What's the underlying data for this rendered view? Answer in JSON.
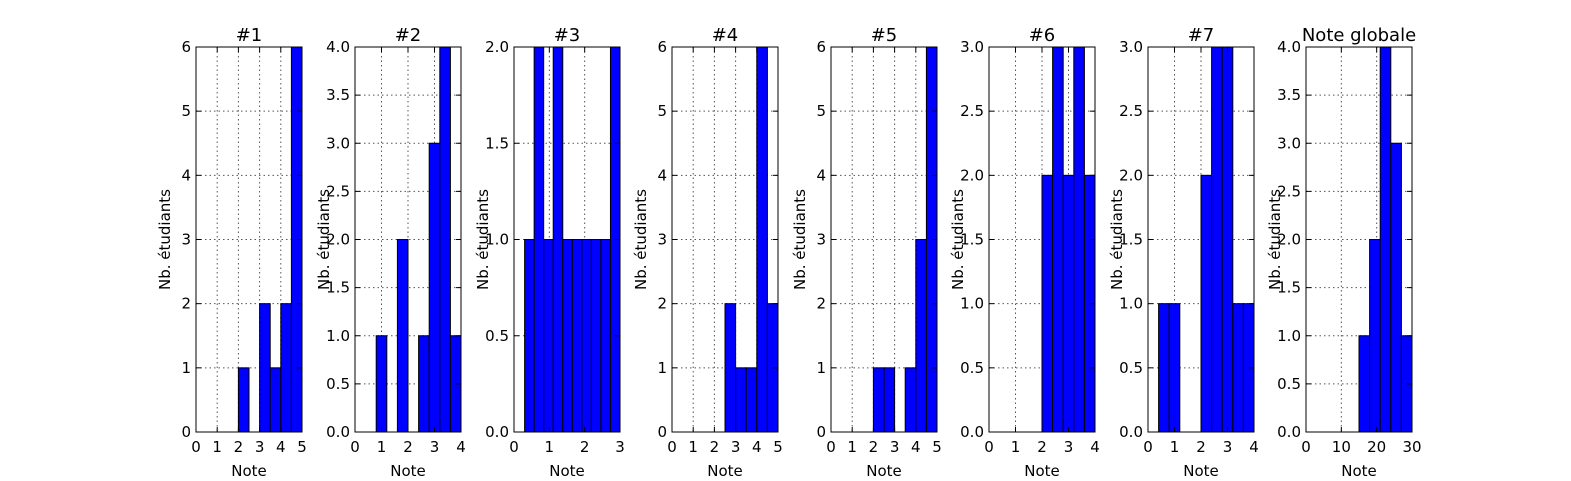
{
  "chart_data": [
    {
      "type": "bar",
      "title": "#1",
      "xlabel": "Note",
      "ylabel": "Nb. étudiants",
      "xlim": [
        0,
        5
      ],
      "ylim": [
        0,
        6
      ],
      "xticks": [
        0,
        1,
        2,
        3,
        4,
        5
      ],
      "yticks": [
        0,
        1,
        2,
        3,
        4,
        5,
        6
      ],
      "bin_edges": [
        0,
        0.5,
        1,
        1.5,
        2,
        2.5,
        3,
        3.5,
        4,
        4.5,
        5
      ],
      "values": [
        0,
        0,
        0,
        0,
        1,
        0,
        2,
        1,
        2,
        6
      ],
      "grid": true,
      "bar_color": "#0000ff"
    },
    {
      "type": "bar",
      "title": "#2",
      "xlabel": "Note",
      "ylabel": "Nb. étudiants",
      "xlim": [
        0,
        4
      ],
      "ylim": [
        0,
        4
      ],
      "xticks": [
        0,
        1,
        2,
        3,
        4
      ],
      "yticks": [
        "0.0",
        "0.5",
        "1.0",
        "1.5",
        "2.0",
        "2.5",
        "3.0",
        "3.5",
        "4.0"
      ],
      "bin_edges": [
        0,
        0.4,
        0.8,
        1.2,
        1.6,
        2.0,
        2.4,
        2.8,
        3.2,
        3.6,
        4.0
      ],
      "values": [
        0,
        0,
        1,
        0,
        2,
        0,
        1,
        3,
        4,
        1
      ],
      "grid": true,
      "bar_color": "#0000ff"
    },
    {
      "type": "bar",
      "title": "#3",
      "xlabel": "Note",
      "ylabel": "Nb. étudiants",
      "xlim": [
        0,
        3
      ],
      "ylim": [
        0,
        2
      ],
      "xticks": [
        0,
        1,
        2,
        3
      ],
      "yticks": [
        "0.0",
        "0.5",
        "1.0",
        "1.5",
        "2.0"
      ],
      "bin_edges": [
        0.3,
        0.57,
        0.84,
        1.11,
        1.38,
        1.65,
        1.92,
        2.19,
        2.46,
        2.73,
        3.0
      ],
      "values": [
        1,
        2,
        1,
        2,
        1,
        1,
        1,
        1,
        1,
        2
      ],
      "grid": true,
      "bar_color": "#0000ff"
    },
    {
      "type": "bar",
      "title": "#4",
      "xlabel": "Note",
      "ylabel": "Nb. étudiants",
      "xlim": [
        0,
        5
      ],
      "ylim": [
        0,
        6
      ],
      "xticks": [
        0,
        1,
        2,
        3,
        4,
        5
      ],
      "yticks": [
        0,
        1,
        2,
        3,
        4,
        5,
        6
      ],
      "bin_edges": [
        0,
        0.5,
        1,
        1.5,
        2,
        2.5,
        3,
        3.5,
        4,
        4.5,
        5
      ],
      "values": [
        0,
        0,
        0,
        0,
        0,
        2,
        1,
        1,
        6,
        2
      ],
      "grid": true,
      "bar_color": "#0000ff"
    },
    {
      "type": "bar",
      "title": "#5",
      "xlabel": "Note",
      "ylabel": "Nb. étudiants",
      "xlim": [
        0,
        5
      ],
      "ylim": [
        0,
        6
      ],
      "xticks": [
        0,
        1,
        2,
        3,
        4,
        5
      ],
      "yticks": [
        0,
        1,
        2,
        3,
        4,
        5,
        6
      ],
      "bin_edges": [
        0,
        0.5,
        1,
        1.5,
        2,
        2.5,
        3,
        3.5,
        4,
        4.5,
        5
      ],
      "values": [
        0,
        0,
        0,
        0,
        1,
        1,
        0,
        1,
        3,
        6
      ],
      "grid": true,
      "bar_color": "#0000ff"
    },
    {
      "type": "bar",
      "title": "#6",
      "xlabel": "Note",
      "ylabel": "Nb. étudiants",
      "xlim": [
        0,
        4
      ],
      "ylim": [
        0,
        3
      ],
      "xticks": [
        0,
        1,
        2,
        3,
        4
      ],
      "yticks": [
        "0.0",
        "0.5",
        "1.0",
        "1.5",
        "2.0",
        "2.5",
        "3.0"
      ],
      "bin_edges": [
        0,
        0.4,
        0.8,
        1.2,
        1.6,
        2.0,
        2.4,
        2.8,
        3.2,
        3.6,
        4.0
      ],
      "values": [
        0,
        0,
        0,
        0,
        0,
        2,
        3,
        2,
        3,
        2
      ],
      "grid": true,
      "bar_color": "#0000ff"
    },
    {
      "type": "bar",
      "title": "#7",
      "xlabel": "Note",
      "ylabel": "Nb. étudiants",
      "xlim": [
        0,
        4
      ],
      "ylim": [
        0,
        3
      ],
      "xticks": [
        0,
        1,
        2,
        3,
        4
      ],
      "yticks": [
        "0.0",
        "0.5",
        "1.0",
        "1.5",
        "2.0",
        "2.5",
        "3.0"
      ],
      "bin_edges": [
        0,
        0.4,
        0.8,
        1.2,
        1.6,
        2.0,
        2.4,
        2.8,
        3.2,
        3.6,
        4.0
      ],
      "values": [
        0,
        1,
        1,
        0,
        0,
        2,
        3,
        3,
        1,
        1
      ],
      "grid": true,
      "bar_color": "#0000ff"
    },
    {
      "type": "bar",
      "title": "Note globale",
      "xlabel": "Note",
      "ylabel": "Nb. étudiants",
      "xlim": [
        0,
        30
      ],
      "ylim": [
        0,
        4
      ],
      "xticks": [
        0,
        10,
        20,
        30
      ],
      "yticks": [
        "0.0",
        "0.5",
        "1.0",
        "1.5",
        "2.0",
        "2.5",
        "3.0",
        "3.5",
        "4.0"
      ],
      "bin_edges": [
        0,
        3,
        6,
        9,
        12,
        15,
        18,
        21,
        24,
        27,
        30
      ],
      "values": [
        0,
        0,
        0,
        0,
        0,
        1,
        2,
        4,
        3,
        1
      ],
      "grid": true,
      "bar_color": "#0000ff"
    }
  ]
}
